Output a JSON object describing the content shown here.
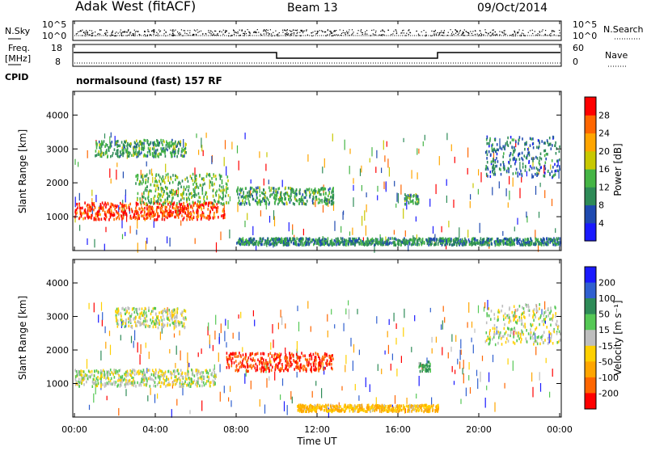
{
  "header": {
    "station": "Adak West (fitACF)",
    "beam": "Beam 13",
    "date": "09/Oct/2014"
  },
  "noise_panel": {
    "left_label": "N.Sky",
    "right_label": "N.Search",
    "left_ticks": [
      "10^5",
      "10^0"
    ],
    "right_ticks": [
      "10^5",
      "10^0"
    ]
  },
  "freq_panel": {
    "left_label_1": "Freq.",
    "left_label_2": "[MHz]",
    "left_ticks": [
      "18",
      "8"
    ],
    "right_label": "Nave",
    "right_ticks": [
      "60",
      "0"
    ],
    "cpid_label": "CPID",
    "cpid_text": "normalsound (fast) 157 RF"
  },
  "axes": {
    "xlabel": "Time UT",
    "ylabel": "Slant Range [km]",
    "x_ticks": [
      "00:00",
      "04:00",
      "08:00",
      "12:00",
      "16:00",
      "20:00",
      "00:00"
    ],
    "y_ticks": [
      "1000",
      "2000",
      "3000",
      "4000"
    ]
  },
  "power_colorbar": {
    "label": "Power [dB]",
    "ticks": [
      "4",
      "8",
      "12",
      "16",
      "20",
      "24",
      "28"
    ],
    "colors": [
      "#1a1aff",
      "#1f4ab0",
      "#2e8b57",
      "#45b545",
      "#c8c800",
      "#ffa500",
      "#ff6600",
      "#ff0000"
    ]
  },
  "velocity_colorbar": {
    "label": "Velocity [m s⁻¹]",
    "ticks": [
      "200",
      "100",
      "50",
      "15",
      "-15",
      "-50",
      "-100",
      "-200"
    ],
    "colors": [
      "#1a1aff",
      "#3060d0",
      "#2e8b57",
      "#55c855",
      "#bebebe",
      "#ffd000",
      "#ffa500",
      "#ff6600",
      "#ff0000"
    ]
  },
  "chart_data": [
    {
      "type": "heatmap",
      "title": "Power [dB]",
      "xlabel": "Time UT",
      "ylabel": "Slant Range [km]",
      "xlim": [
        0,
        24
      ],
      "ylim": [
        0,
        4700
      ],
      "clim": [
        0,
        32
      ],
      "regions": [
        {
          "t": [
            0.0,
            7.4
          ],
          "range": [
            950,
            1450
          ],
          "value": 28
        },
        {
          "t": [
            3.0,
            7.6
          ],
          "range": [
            1400,
            2300
          ],
          "value": 14
        },
        {
          "t": [
            1.0,
            5.5
          ],
          "range": [
            2800,
            3300
          ],
          "value": 12
        },
        {
          "t": [
            8.0,
            12.8
          ],
          "range": [
            1400,
            1900
          ],
          "value": 12
        },
        {
          "t": [
            16.3,
            17.0
          ],
          "range": [
            1400,
            1700
          ],
          "value": 12
        },
        {
          "t": [
            20.3,
            24.0
          ],
          "range": [
            2200,
            3400
          ],
          "value": 8
        },
        {
          "t": [
            8.0,
            24.0
          ],
          "range": [
            200,
            400
          ],
          "value": 10
        }
      ]
    },
    {
      "type": "heatmap",
      "title": "Velocity [m s-1]",
      "xlabel": "Time UT",
      "ylabel": "Slant Range [km]",
      "xlim": [
        0,
        24
      ],
      "ylim": [
        0,
        4700
      ],
      "clim": [
        -250,
        250
      ],
      "regions": [
        {
          "t": [
            0.0,
            7.0
          ],
          "range": [
            950,
            1450
          ],
          "value": 0
        },
        {
          "t": [
            7.5,
            12.8
          ],
          "range": [
            1400,
            1950
          ],
          "value": -200
        },
        {
          "t": [
            2.0,
            5.5
          ],
          "range": [
            2700,
            3300
          ],
          "value": 0
        },
        {
          "t": [
            17.0,
            17.6
          ],
          "range": [
            1400,
            1700
          ],
          "value": 50
        },
        {
          "t": [
            20.3,
            24.0
          ],
          "range": [
            2200,
            3400
          ],
          "value": 0
        },
        {
          "t": [
            11.0,
            18.0
          ],
          "range": [
            200,
            400
          ],
          "value": -50
        }
      ]
    }
  ]
}
